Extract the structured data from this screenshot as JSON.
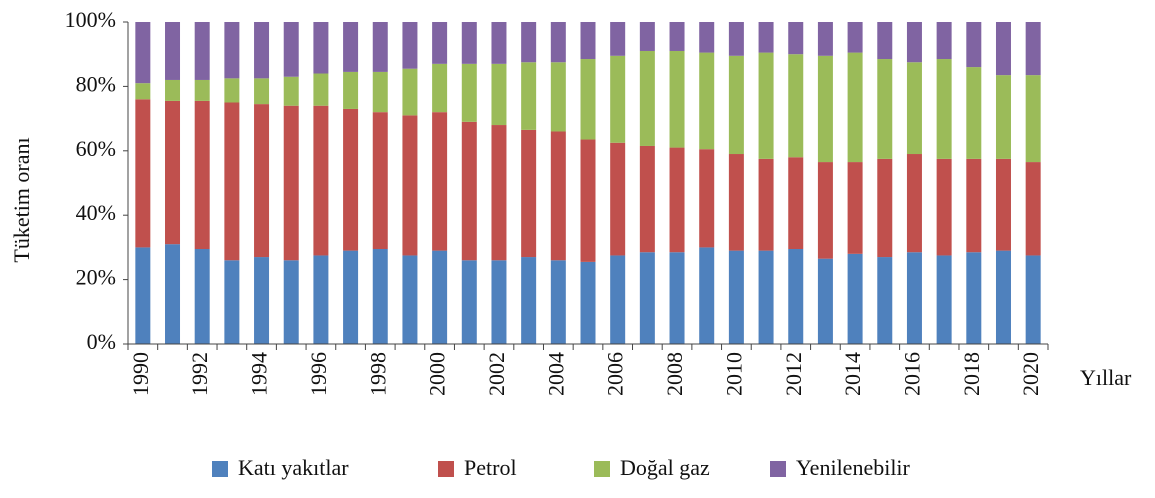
{
  "chart_data": {
    "type": "stacked_bar",
    "y_label": "Tüketim oranı",
    "x_label": "Yıllar",
    "categories": [
      "1990",
      null,
      "1992",
      null,
      "1994",
      null,
      "1996",
      null,
      "1998",
      null,
      "2000",
      null,
      "2002",
      null,
      "2004",
      null,
      "2006",
      null,
      "2008",
      null,
      "2010",
      null,
      "2012",
      null,
      "2014",
      null,
      "2016",
      null,
      "2018",
      null,
      "2020"
    ],
    "series": [
      {
        "name": "Katı yakıtlar",
        "color": "#4f81bd",
        "values": [
          30,
          31,
          29.5,
          26,
          27,
          26,
          27.5,
          29,
          29.5,
          27.5,
          29,
          26,
          26,
          27,
          26,
          25.5,
          27.5,
          28.5,
          28.5,
          30,
          29,
          29,
          29.5,
          26.5,
          28,
          27,
          28.5,
          27.5,
          28.5,
          29,
          27.5
        ]
      },
      {
        "name": "Petrol",
        "color": "#c0504d",
        "values": [
          46,
          44.5,
          46,
          49,
          47.5,
          48,
          46.5,
          44,
          42.5,
          43.5,
          43,
          43,
          42,
          39.5,
          40,
          38,
          35,
          33,
          32.5,
          30.5,
          30,
          28.5,
          28.5,
          30,
          28.5,
          30.5,
          30.5,
          30,
          29,
          28.5,
          29
        ]
      },
      {
        "name": "Doğal gaz",
        "color": "#9bbb59",
        "values": [
          5,
          6.5,
          6.5,
          7.5,
          8,
          9,
          10,
          11.5,
          12.5,
          14.5,
          15,
          18,
          19,
          21,
          21.5,
          25,
          27,
          29.5,
          30,
          30,
          30.5,
          33,
          32,
          33,
          34,
          31,
          28.5,
          31,
          28.5,
          26,
          27
        ]
      },
      {
        "name": "Yenilenebilir",
        "color": "#8064a2",
        "values": [
          19,
          18,
          18,
          17.5,
          17.5,
          17,
          16,
          15.5,
          15.5,
          14.5,
          13,
          13,
          13,
          12.5,
          12.5,
          11.5,
          10.5,
          9,
          9,
          9.5,
          10.5,
          9.5,
          10,
          10.5,
          9.5,
          11.5,
          12.5,
          11.5,
          14,
          16.5,
          16.5
        ]
      }
    ],
    "ylim": [
      0,
      100
    ],
    "yticks": [
      {
        "value": 0,
        "label": "0%"
      },
      {
        "value": 20,
        "label": "20%"
      },
      {
        "value": 40,
        "label": "40%"
      },
      {
        "value": 60,
        "label": "60%"
      },
      {
        "value": 80,
        "label": "80%"
      },
      {
        "value": 100,
        "label": "100%"
      }
    ],
    "legend": "bottom"
  }
}
